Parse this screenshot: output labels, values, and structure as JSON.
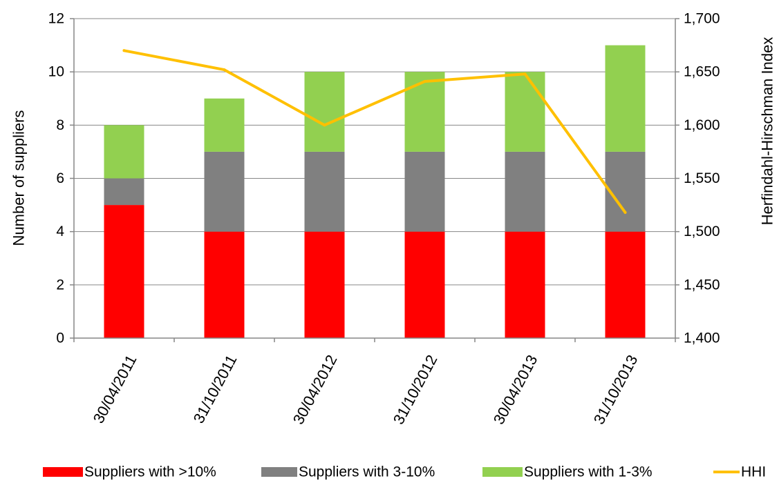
{
  "chart_data": {
    "type": "bar",
    "stacked": true,
    "categories": [
      "30/04/2011",
      "31/10/2011",
      "30/04/2012",
      "31/10/2012",
      "30/04/2013",
      "31/10/2013"
    ],
    "series": [
      {
        "name": "Suppliers with >10%",
        "values": [
          5,
          4,
          4,
          4,
          4,
          4
        ],
        "color": "#ff0000",
        "axis": "left",
        "kind": "bar"
      },
      {
        "name": "Suppliers with 3-10%",
        "values": [
          1,
          3,
          3,
          3,
          3,
          3
        ],
        "color": "#808080",
        "axis": "left",
        "kind": "bar"
      },
      {
        "name": "Suppliers with 1-3%",
        "values": [
          2,
          2,
          3,
          3,
          3,
          4
        ],
        "color": "#92d050",
        "axis": "left",
        "kind": "bar"
      },
      {
        "name": "HHI",
        "values": [
          1670,
          1652,
          1600,
          1641,
          1648,
          1518
        ],
        "color": "#ffc000",
        "axis": "right",
        "kind": "line"
      }
    ],
    "ylabel": "Number of suppliers",
    "ylabel_right": "Herfindahl-Hirschman Index",
    "ylim": [
      0,
      12
    ],
    "yticks": [
      "0",
      "2",
      "4",
      "6",
      "8",
      "10",
      "12"
    ],
    "ylim_right": [
      1400,
      1700
    ],
    "yticks_right": [
      "1,400",
      "1,450",
      "1,500",
      "1,550",
      "1,600",
      "1,650",
      "1,700"
    ],
    "grid": true,
    "legend": "bottom"
  }
}
